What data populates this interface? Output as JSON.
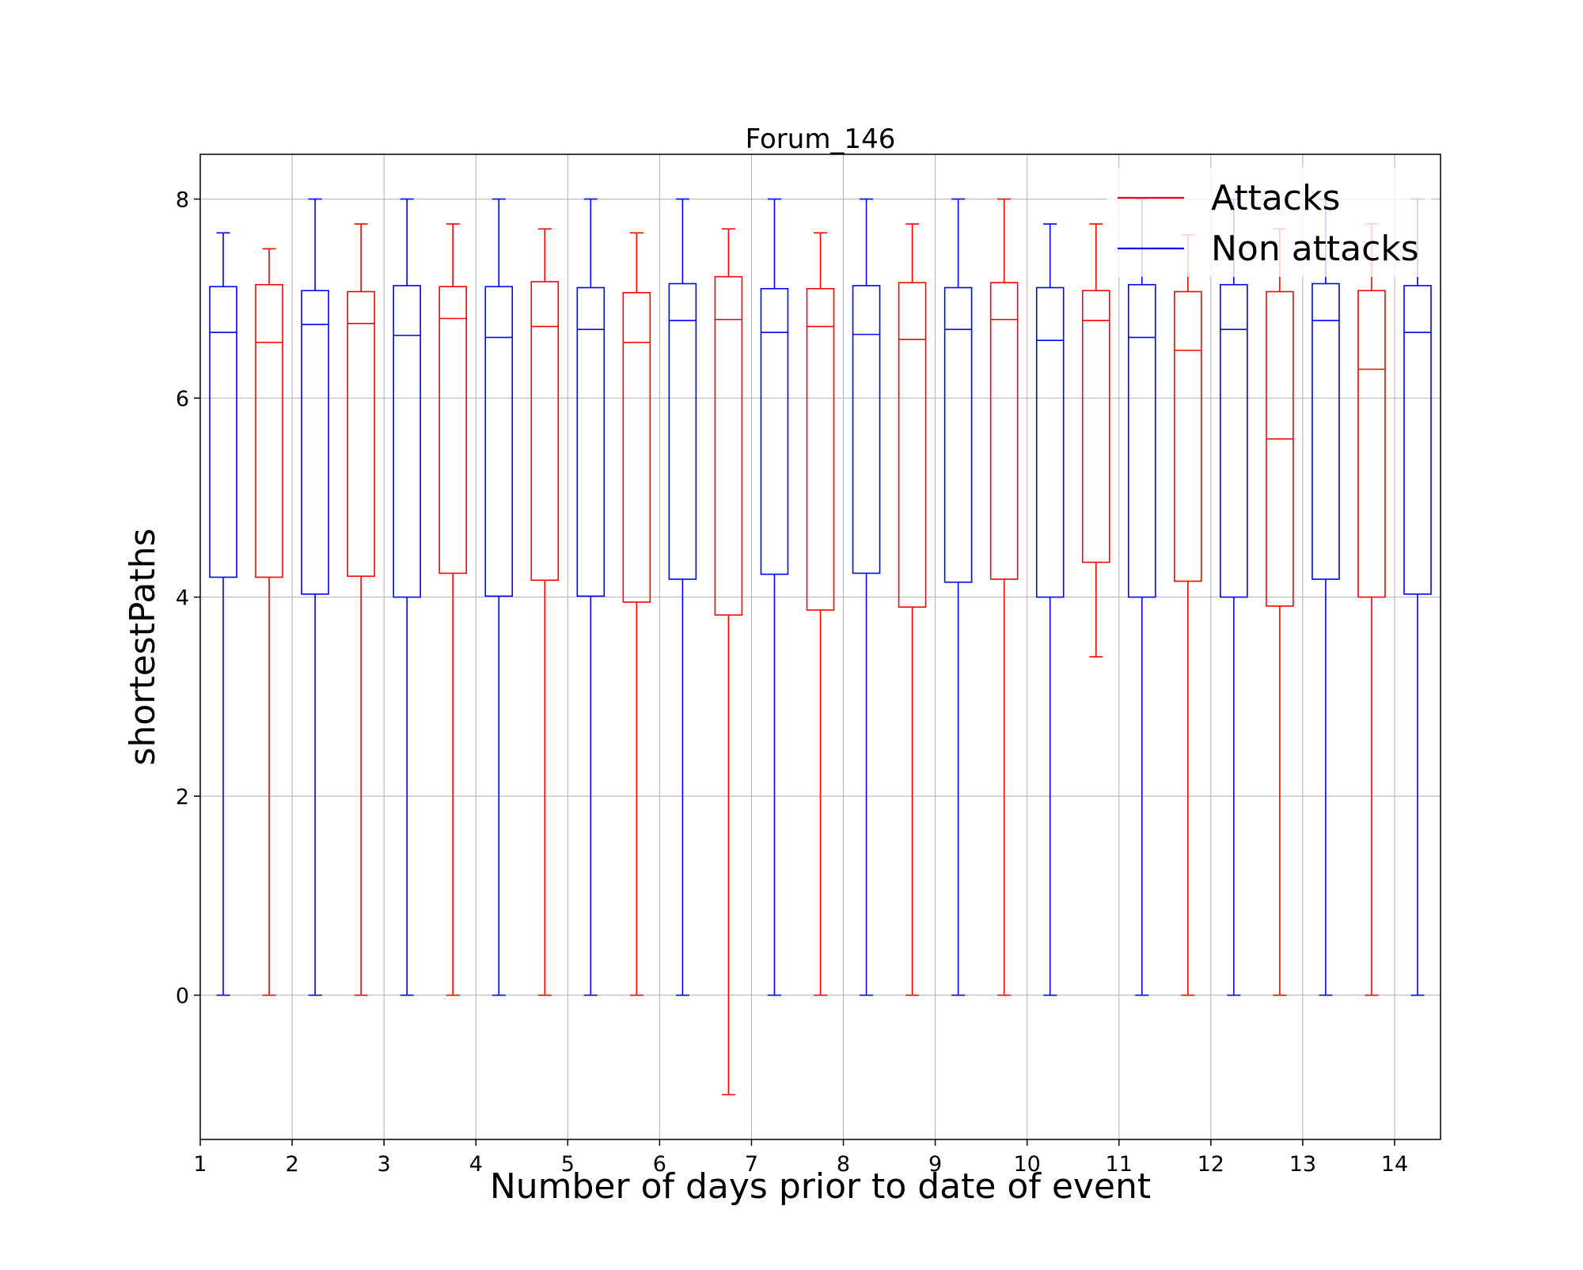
{
  "chart_data": {
    "type": "box",
    "title": "Forum_146",
    "xlabel": "Number of days prior to date of event",
    "ylabel": "shortestPaths",
    "x_ticks": [
      "1",
      "2",
      "3",
      "4",
      "5",
      "6",
      "7",
      "8",
      "9",
      "10",
      "11",
      "12",
      "13",
      "14"
    ],
    "y_ticks": [
      0,
      2,
      4,
      6,
      8
    ],
    "ylim": [
      -1.45,
      8.45
    ],
    "grid": true,
    "legend": {
      "placement": "top-right",
      "entries": [
        {
          "label": "Attacks",
          "color": "#ff0000"
        },
        {
          "label": "Non attacks",
          "color": "#0000ff"
        }
      ]
    },
    "boxes": [
      {
        "series": "Non attacks",
        "color": "#0000ff",
        "x": 1.25,
        "whisker_low": 0,
        "q1": 4.2,
        "median": 6.66,
        "q3": 7.12,
        "whisker_high": 7.66
      },
      {
        "series": "Attacks",
        "color": "#ff0000",
        "x": 1.75,
        "whisker_low": 0,
        "q1": 4.2,
        "median": 6.56,
        "q3": 7.14,
        "whisker_high": 7.5
      },
      {
        "series": "Non attacks",
        "color": "#0000ff",
        "x": 2.25,
        "whisker_low": 0,
        "q1": 4.03,
        "median": 6.74,
        "q3": 7.08,
        "whisker_high": 8.0
      },
      {
        "series": "Attacks",
        "color": "#ff0000",
        "x": 2.75,
        "whisker_low": 0,
        "q1": 4.21,
        "median": 6.75,
        "q3": 7.07,
        "whisker_high": 7.75
      },
      {
        "series": "Non attacks",
        "color": "#0000ff",
        "x": 3.25,
        "whisker_low": 0,
        "q1": 4.0,
        "median": 6.63,
        "q3": 7.13,
        "whisker_high": 8.0
      },
      {
        "series": "Attacks",
        "color": "#ff0000",
        "x": 3.75,
        "whisker_low": 0,
        "q1": 4.24,
        "median": 6.8,
        "q3": 7.12,
        "whisker_high": 7.75
      },
      {
        "series": "Non attacks",
        "color": "#0000ff",
        "x": 4.25,
        "whisker_low": 0,
        "q1": 4.01,
        "median": 6.61,
        "q3": 7.12,
        "whisker_high": 8.0
      },
      {
        "series": "Attacks",
        "color": "#ff0000",
        "x": 4.75,
        "whisker_low": 0,
        "q1": 4.17,
        "median": 6.72,
        "q3": 7.17,
        "whisker_high": 7.7
      },
      {
        "series": "Non attacks",
        "color": "#0000ff",
        "x": 5.25,
        "whisker_low": 0,
        "q1": 4.01,
        "median": 6.69,
        "q3": 7.11,
        "whisker_high": 8.0
      },
      {
        "series": "Attacks",
        "color": "#ff0000",
        "x": 5.75,
        "whisker_low": 0,
        "q1": 3.95,
        "median": 6.56,
        "q3": 7.06,
        "whisker_high": 7.66
      },
      {
        "series": "Non attacks",
        "color": "#0000ff",
        "x": 6.25,
        "whisker_low": 0,
        "q1": 4.18,
        "median": 6.78,
        "q3": 7.15,
        "whisker_high": 8.0
      },
      {
        "series": "Attacks",
        "color": "#ff0000",
        "x": 6.75,
        "whisker_low": -1.0,
        "q1": 3.82,
        "median": 6.79,
        "q3": 7.22,
        "whisker_high": 7.7
      },
      {
        "series": "Non attacks",
        "color": "#0000ff",
        "x": 7.25,
        "whisker_low": 0,
        "q1": 4.23,
        "median": 6.66,
        "q3": 7.1,
        "whisker_high": 8.0
      },
      {
        "series": "Attacks",
        "color": "#ff0000",
        "x": 7.75,
        "whisker_low": 0,
        "q1": 3.87,
        "median": 6.72,
        "q3": 7.1,
        "whisker_high": 7.66
      },
      {
        "series": "Non attacks",
        "color": "#0000ff",
        "x": 8.25,
        "whisker_low": 0,
        "q1": 4.24,
        "median": 6.64,
        "q3": 7.13,
        "whisker_high": 8.0
      },
      {
        "series": "Attacks",
        "color": "#ff0000",
        "x": 8.75,
        "whisker_low": 0,
        "q1": 3.9,
        "median": 6.59,
        "q3": 7.16,
        "whisker_high": 7.75
      },
      {
        "series": "Non attacks",
        "color": "#0000ff",
        "x": 9.25,
        "whisker_low": 0,
        "q1": 4.15,
        "median": 6.69,
        "q3": 7.11,
        "whisker_high": 8.0
      },
      {
        "series": "Attacks",
        "color": "#ff0000",
        "x": 9.75,
        "whisker_low": 0,
        "q1": 4.18,
        "median": 6.79,
        "q3": 7.16,
        "whisker_high": 8.0
      },
      {
        "series": "Non attacks",
        "color": "#0000ff",
        "x": 10.25,
        "whisker_low": 0,
        "q1": 4.0,
        "median": 6.58,
        "q3": 7.11,
        "whisker_high": 7.75
      },
      {
        "series": "Attacks",
        "color": "#ff0000",
        "x": 10.75,
        "whisker_low": 3.4,
        "q1": 4.35,
        "median": 6.78,
        "q3": 7.08,
        "whisker_high": 7.75
      },
      {
        "series": "Non attacks",
        "color": "#0000ff",
        "x": 11.25,
        "whisker_low": 0,
        "q1": 4.0,
        "median": 6.61,
        "q3": 7.14,
        "whisker_high": 8.0
      },
      {
        "series": "Attacks",
        "color": "#ff0000",
        "x": 11.75,
        "whisker_low": 0,
        "q1": 4.16,
        "median": 6.48,
        "q3": 7.07,
        "whisker_high": 7.64
      },
      {
        "series": "Non attacks",
        "color": "#0000ff",
        "x": 12.25,
        "whisker_low": 0,
        "q1": 4.0,
        "median": 6.69,
        "q3": 7.14,
        "whisker_high": 8.0
      },
      {
        "series": "Attacks",
        "color": "#ff0000",
        "x": 12.75,
        "whisker_low": 0,
        "q1": 3.91,
        "median": 5.59,
        "q3": 7.07,
        "whisker_high": 7.7
      },
      {
        "series": "Non attacks",
        "color": "#0000ff",
        "x": 13.25,
        "whisker_low": 0,
        "q1": 4.18,
        "median": 6.78,
        "q3": 7.15,
        "whisker_high": 8.0
      },
      {
        "series": "Attacks",
        "color": "#ff0000",
        "x": 13.75,
        "whisker_low": 0,
        "q1": 4.0,
        "median": 6.29,
        "q3": 7.08,
        "whisker_high": 7.75
      },
      {
        "series": "Non attacks",
        "color": "#0000ff",
        "x": 14.25,
        "whisker_low": 0,
        "q1": 4.03,
        "median": 6.66,
        "q3": 7.13,
        "whisker_high": 8.0
      }
    ]
  }
}
